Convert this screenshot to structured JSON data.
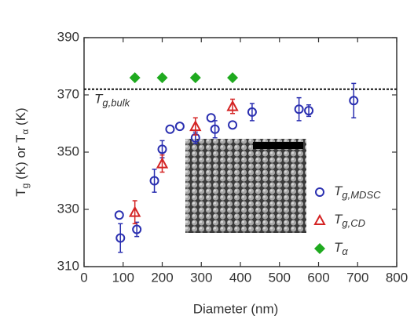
{
  "chart_data": {
    "type": "scatter",
    "xlabel": "Diameter (nm)",
    "ylabel": [
      "T",
      "g",
      " (K) or T",
      "α",
      " (K)"
    ],
    "xlim": [
      0,
      800
    ],
    "xticks": [
      0,
      100,
      200,
      300,
      400,
      500,
      600,
      700,
      800
    ],
    "ylim": [
      310,
      390
    ],
    "yticks": [
      310,
      330,
      350,
      370,
      390
    ],
    "reference_line": {
      "value": 372,
      "label": [
        "T",
        "g,bulk"
      ],
      "color": "#111111"
    },
    "series": [
      {
        "name": [
          "T",
          "g,MDSC"
        ],
        "marker": "circle",
        "color": "#2a2fb0",
        "x": [
          90,
          93,
          135,
          180,
          200,
          220,
          245,
          285,
          325,
          335,
          380,
          430,
          550,
          575,
          690
        ],
        "values": [
          328,
          320,
          323,
          340,
          351,
          358,
          359,
          355,
          362,
          358,
          359.5,
          364,
          365,
          364.5,
          368
        ],
        "errors": [
          0,
          5,
          2.5,
          4,
          3,
          0,
          0,
          2,
          0,
          3,
          0,
          3,
          4,
          2,
          6
        ]
      },
      {
        "name": [
          "T",
          "g,CD"
        ],
        "marker": "triangle",
        "color": "#d42424",
        "x": [
          130,
          200,
          285,
          380
        ],
        "values": [
          329,
          346,
          359,
          366
        ],
        "errors": [
          4,
          3,
          3,
          2.5
        ]
      },
      {
        "name": [
          "T",
          "α"
        ],
        "marker": "diamond",
        "color": "#1faa1f",
        "x": [
          130,
          200,
          285,
          380
        ],
        "values": [
          376,
          376,
          376,
          376
        ],
        "errors": [
          0,
          0,
          0,
          0
        ]
      }
    ],
    "legend": "lower right"
  }
}
